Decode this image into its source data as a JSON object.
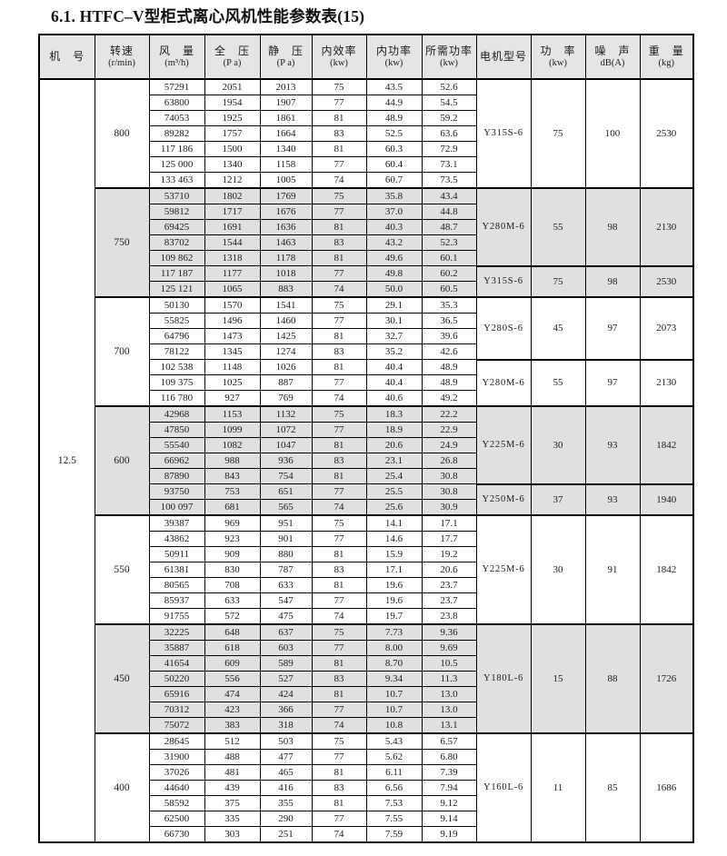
{
  "title": "6.1. HTFC–V型柜式离心风机性能参数表(15)",
  "colors": {
    "shade": "#e0e0e0",
    "header_bg": "#e5e5e5",
    "border": "#000000",
    "text": "#1c1c1c"
  },
  "table": {
    "machine_no": "12.5",
    "headers": [
      {
        "label": "机　号",
        "unit": ""
      },
      {
        "label": "转速",
        "unit": "(r/min)"
      },
      {
        "label": "风　量",
        "unit": "(m³/h)"
      },
      {
        "label": "全　压",
        "unit": "(P a)"
      },
      {
        "label": "静　压",
        "unit": "(P a)"
      },
      {
        "label": "内效率",
        "unit": "(kw)"
      },
      {
        "label": "内功率",
        "unit": "(kw)"
      },
      {
        "label": "所需功率",
        "unit": "(kw)"
      },
      {
        "label": "电机型号",
        "unit": ""
      },
      {
        "label": "功　率",
        "unit": "(kw)"
      },
      {
        "label": "噪　声",
        "unit": "dB(A)"
      },
      {
        "label": "重　量",
        "unit": "(kg)"
      }
    ],
    "groups": [
      {
        "speed": "800",
        "shaded": false,
        "rows": [
          [
            "57291",
            "2051",
            "2013",
            "75",
            "43.5",
            "52.6"
          ],
          [
            "63800",
            "1954",
            "1907",
            "77",
            "44.9",
            "54.5"
          ],
          [
            "74053",
            "1925",
            "1861",
            "81",
            "48.9",
            "59.2"
          ],
          [
            "89282",
            "1757",
            "1664",
            "83",
            "52.5",
            "63.6"
          ],
          [
            "117 186",
            "1500",
            "1340",
            "81",
            "60.3",
            "72.9"
          ],
          [
            "125 000",
            "1340",
            "1158",
            "77",
            "60.4",
            "73.1"
          ],
          [
            "133 463",
            "1212",
            "1005",
            "74",
            "60.7",
            "73.5"
          ]
        ],
        "motors": [
          {
            "model": "Y315S-6",
            "power": "75",
            "noise": "100",
            "weight": "2530",
            "span": 7
          }
        ]
      },
      {
        "speed": "750",
        "shaded": true,
        "rows": [
          [
            "53710",
            "1802",
            "1769",
            "75",
            "35.8",
            "43.4"
          ],
          [
            "59812",
            "1717",
            "1676",
            "77",
            "37.0",
            "44.8"
          ],
          [
            "69425",
            "1691",
            "1636",
            "81",
            "40.3",
            "48.7"
          ],
          [
            "83702",
            "1544",
            "1463",
            "83",
            "43.2",
            "52.3"
          ],
          [
            "109 862",
            "1318",
            "1178",
            "81",
            "49.6",
            "60.1"
          ],
          [
            "117 187",
            "1177",
            "1018",
            "77",
            "49.8",
            "60.2"
          ],
          [
            "125 121",
            "1065",
            "883",
            "74",
            "50.0",
            "60.5"
          ]
        ],
        "motors": [
          {
            "model": "Y280M-6",
            "power": "55",
            "noise": "98",
            "weight": "2130",
            "span": 5
          },
          {
            "model": "Y315S-6",
            "power": "75",
            "noise": "98",
            "weight": "2530",
            "span": 2
          }
        ]
      },
      {
        "speed": "700",
        "shaded": false,
        "rows": [
          [
            "50130",
            "1570",
            "1541",
            "75",
            "29.1",
            "35.3"
          ],
          [
            "55825",
            "1496",
            "1460",
            "77",
            "30.1",
            "36.5"
          ],
          [
            "64796",
            "1473",
            "1425",
            "81",
            "32.7",
            "39.6"
          ],
          [
            "78122",
            "1345",
            "1274",
            "83",
            "35.2",
            "42.6"
          ],
          [
            "102 538",
            "1148",
            "1026",
            "81",
            "40.4",
            "48.9"
          ],
          [
            "109 375",
            "1025",
            "887",
            "77",
            "40.4",
            "48.9"
          ],
          [
            "116 780",
            "927",
            "769",
            "74",
            "40.6",
            "49.2"
          ]
        ],
        "motors": [
          {
            "model": "Y280S-6",
            "power": "45",
            "noise": "97",
            "weight": "2073",
            "span": 4
          },
          {
            "model": "Y280M-6",
            "power": "55",
            "noise": "97",
            "weight": "2130",
            "span": 3
          }
        ]
      },
      {
        "speed": "600",
        "shaded": true,
        "rows": [
          [
            "42968",
            "1153",
            "1132",
            "75",
            "18.3",
            "22.2"
          ],
          [
            "47850",
            "1099",
            "1072",
            "77",
            "18.9",
            "22.9"
          ],
          [
            "55540",
            "1082",
            "1047",
            "81",
            "20.6",
            "24.9"
          ],
          [
            "66962",
            "988",
            "936",
            "83",
            "23.1",
            "26.8"
          ],
          [
            "87890",
            "843",
            "754",
            "81",
            "25.4",
            "30.8"
          ],
          [
            "93750",
            "753",
            "651",
            "77",
            "25.5",
            "30.8"
          ],
          [
            "100 097",
            "681",
            "565",
            "74",
            "25.6",
            "30.9"
          ]
        ],
        "motors": [
          {
            "model": "Y225M-6",
            "power": "30",
            "noise": "93",
            "weight": "1842",
            "span": 5
          },
          {
            "model": "Y250M-6",
            "power": "37",
            "noise": "93",
            "weight": "1940",
            "span": 2
          }
        ]
      },
      {
        "speed": "550",
        "shaded": false,
        "rows": [
          [
            "39387",
            "969",
            "951",
            "75",
            "14.1",
            "17.1"
          ],
          [
            "43862",
            "923",
            "901",
            "77",
            "14.6",
            "17.7"
          ],
          [
            "50911",
            "909",
            "880",
            "81",
            "15.9",
            "19.2"
          ],
          [
            "61381",
            "830",
            "787",
            "83",
            "17.1",
            "20.6"
          ],
          [
            "80565",
            "708",
            "633",
            "81",
            "19.6",
            "23.7"
          ],
          [
            "85937",
            "633",
            "547",
            "77",
            "19.6",
            "23.7"
          ],
          [
            "91755",
            "572",
            "475",
            "74",
            "19.7",
            "23.8"
          ]
        ],
        "motors": [
          {
            "model": "Y225M-6",
            "power": "30",
            "noise": "91",
            "weight": "1842",
            "span": 7
          }
        ]
      },
      {
        "speed": "450",
        "shaded": true,
        "rows": [
          [
            "32225",
            "648",
            "637",
            "75",
            "7.73",
            "9.36"
          ],
          [
            "35887",
            "618",
            "603",
            "77",
            "8.00",
            "9.69"
          ],
          [
            "41654",
            "609",
            "589",
            "81",
            "8.70",
            "10.5"
          ],
          [
            "50220",
            "556",
            "527",
            "83",
            "9.34",
            "11.3"
          ],
          [
            "65916",
            "474",
            "424",
            "81",
            "10.7",
            "13.0"
          ],
          [
            "70312",
            "423",
            "366",
            "77",
            "10.7",
            "13.0"
          ],
          [
            "75072",
            "383",
            "318",
            "74",
            "10.8",
            "13.1"
          ]
        ],
        "motors": [
          {
            "model": "Y180L-6",
            "power": "15",
            "noise": "88",
            "weight": "1726",
            "span": 7
          }
        ]
      },
      {
        "speed": "400",
        "shaded": false,
        "rows": [
          [
            "28645",
            "512",
            "503",
            "75",
            "5.43",
            "6.57"
          ],
          [
            "31900",
            "488",
            "477",
            "77",
            "5.62",
            "6.80"
          ],
          [
            "37026",
            "481",
            "465",
            "81",
            "6.11",
            "7.39"
          ],
          [
            "44640",
            "439",
            "416",
            "83",
            "6.56",
            "7.94"
          ],
          [
            "58592",
            "375",
            "355",
            "81",
            "7.53",
            "9.12"
          ],
          [
            "62500",
            "335",
            "290",
            "77",
            "7.55",
            "9.14"
          ],
          [
            "66730",
            "303",
            "251",
            "74",
            "7.59",
            "9.19"
          ]
        ],
        "motors": [
          {
            "model": "Y160L-6",
            "power": "11",
            "noise": "85",
            "weight": "1686",
            "span": 7
          }
        ]
      }
    ]
  }
}
